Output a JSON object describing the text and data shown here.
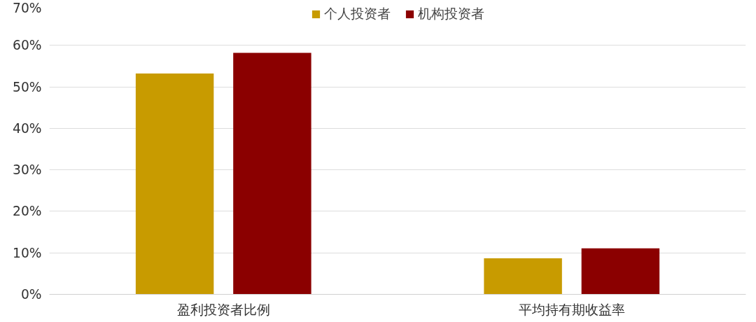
{
  "chart_data": {
    "type": "bar",
    "categories": [
      "盈利投资者比例",
      "平均持有期收益率"
    ],
    "series": [
      {
        "name": "个人投资者",
        "color": "#c89b00",
        "values": [
          53.2,
          8.7
        ]
      },
      {
        "name": "机构投资者",
        "color": "#8b0000",
        "values": [
          58.2,
          11.1
        ]
      }
    ],
    "ylim": [
      0,
      70
    ],
    "yticks": [
      {
        "value": 0,
        "label": "0%"
      },
      {
        "value": 10,
        "label": "10%"
      },
      {
        "value": 20,
        "label": "20%"
      },
      {
        "value": 30,
        "label": "30%"
      },
      {
        "value": 40,
        "label": "40%"
      },
      {
        "value": 50,
        "label": "50%"
      },
      {
        "value": 60,
        "label": "60%"
      },
      {
        "value": 70,
        "label": "70%"
      }
    ],
    "grid": "y",
    "legend": "top"
  }
}
